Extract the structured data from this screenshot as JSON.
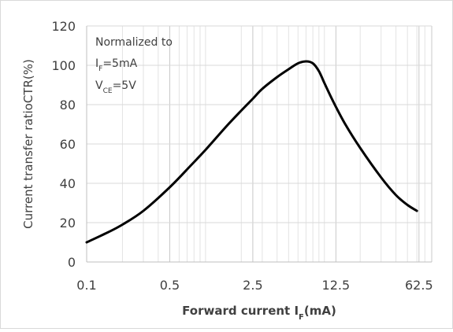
{
  "chart_data": {
    "type": "line",
    "xlabel": "Forward current I",
    "xlabel_subscript": "F",
    "xlabel_suffix": "(mA)",
    "ylabel": "Current transfer ratioCTR(%)",
    "x_scale": "log",
    "xlim": [
      0.1,
      80
    ],
    "ylim": [
      0,
      120
    ],
    "x_ticks": [
      0.1,
      0.5,
      2.5,
      12.5,
      62.5
    ],
    "x_tick_labels": [
      "0.1",
      "0.5",
      "2.5",
      "12.5",
      "62.5"
    ],
    "y_ticks": [
      0,
      20,
      40,
      60,
      80,
      100,
      120
    ],
    "y_tick_labels": [
      "0",
      "20",
      "40",
      "60",
      "80",
      "100",
      "120"
    ],
    "grid": true,
    "annotation": {
      "line1": "Normalized to",
      "line2_main": "I",
      "line2_sub": "F",
      "line2_rest": "=5mA",
      "line3_main": "V",
      "line3_sub": "CE",
      "line3_rest": "=5V"
    },
    "series": [
      {
        "x": [
          0.1,
          0.15,
          0.2,
          0.3,
          0.5,
          0.75,
          1,
          1.5,
          2,
          2.5,
          3,
          4,
          5,
          6,
          7,
          8,
          9,
          10,
          12,
          15,
          20,
          30,
          40,
          50,
          60
        ],
        "y": [
          10,
          15,
          19,
          26,
          38,
          49,
          57,
          69,
          77,
          83,
          88,
          94,
          98,
          101,
          102,
          101,
          97,
          91,
          81,
          70,
          58,
          43,
          34,
          29,
          26
        ]
      }
    ]
  }
}
